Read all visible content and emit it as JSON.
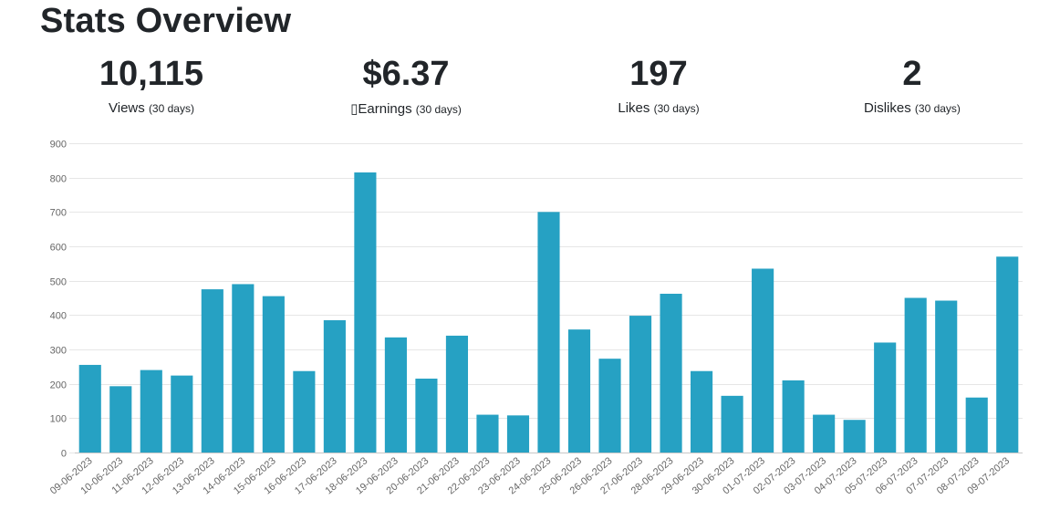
{
  "page": {
    "title": "Stats Overview"
  },
  "stats": [
    {
      "value": "10,115",
      "label": "Views",
      "period": "(30 days)"
    },
    {
      "value": "$6.37",
      "label": "▯Earnings",
      "period": "(30 days)"
    },
    {
      "value": "197",
      "label": "Likes",
      "period": "(30 days)"
    },
    {
      "value": "2",
      "label": "Dislikes",
      "period": "(30 days)"
    }
  ],
  "colors": {
    "bar": "#26a1c3",
    "grid": "#e6e6e6",
    "axis": "#c8c8c8",
    "text": "#666666"
  },
  "chart_data": {
    "type": "bar",
    "title": "",
    "xlabel": "",
    "ylabel": "",
    "ylim": [
      0,
      900
    ],
    "yticks": [
      0,
      100,
      200,
      300,
      400,
      500,
      600,
      700,
      800,
      900
    ],
    "grid": true,
    "categories": [
      "09-06-2023",
      "10-06-2023",
      "11-06-2023",
      "12-06-2023",
      "13-06-2023",
      "14-06-2023",
      "15-06-2023",
      "16-06-2023",
      "17-06-2023",
      "18-06-2023",
      "19-06-2023",
      "20-06-2023",
      "21-06-2023",
      "22-06-2023",
      "23-06-2023",
      "24-06-2023",
      "25-06-2023",
      "26-06-2023",
      "27-06-2023",
      "28-06-2023",
      "29-06-2023",
      "30-06-2023",
      "01-07-2023",
      "02-07-2023",
      "03-07-2023",
      "04-07-2023",
      "05-07-2023",
      "06-07-2023",
      "07-07-2023",
      "08-07-2023",
      "09-07-2023"
    ],
    "values": [
      255,
      193,
      240,
      224,
      475,
      490,
      455,
      237,
      385,
      815,
      335,
      215,
      340,
      110,
      108,
      700,
      358,
      273,
      398,
      462,
      237,
      165,
      535,
      210,
      110,
      95,
      320,
      450,
      442,
      160,
      570
    ]
  }
}
